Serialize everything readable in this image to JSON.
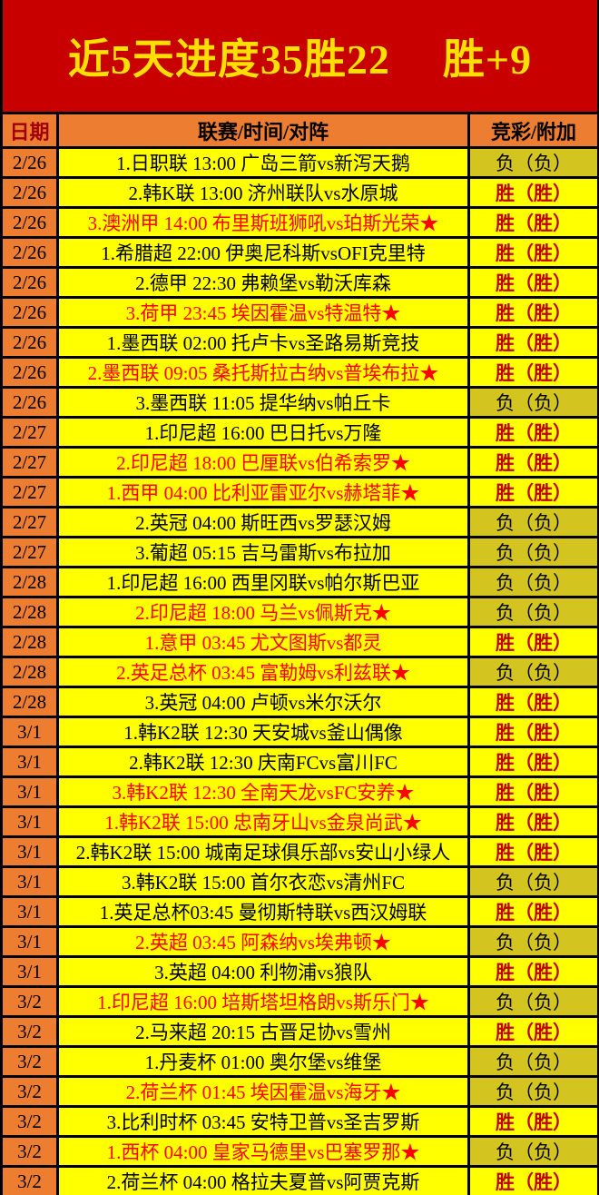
{
  "banner": {
    "title_progress": "近5天进度35胜22",
    "title_net": "胜+9"
  },
  "table": {
    "headers": {
      "date": "日期",
      "match": "联赛/时间/对阵",
      "result": "竞彩/附加"
    },
    "rows": [
      {
        "date": "2/26",
        "match": "1.日职联 13:00 广岛三箭vs新泻天鹅",
        "red": false,
        "result": "负（负）",
        "outcome": "loss"
      },
      {
        "date": "2/26",
        "match": "2.韩K联 13:00 济州联队vs水原城",
        "red": false,
        "result": "胜（胜）",
        "outcome": "win"
      },
      {
        "date": "2/26",
        "match": "3.澳洲甲 14:00 布里斯班狮吼vs珀斯光荣★",
        "red": true,
        "result": "胜（胜）",
        "outcome": "win"
      },
      {
        "date": "2/26",
        "match": "1.希腊超 22:00 伊奥尼科斯vsOFI克里特",
        "red": false,
        "result": "胜（胜）",
        "outcome": "win"
      },
      {
        "date": "2/26",
        "match": "2.德甲 22:30 弗赖堡vs勒沃库森",
        "red": false,
        "result": "胜（胜）",
        "outcome": "win"
      },
      {
        "date": "2/26",
        "match": "3.荷甲 23:45 埃因霍温vs特温特★",
        "red": true,
        "result": "胜（胜）",
        "outcome": "win"
      },
      {
        "date": "2/26",
        "match": "1.墨西联 02:00 托卢卡vs圣路易斯竞技",
        "red": false,
        "result": "胜（胜）",
        "outcome": "win"
      },
      {
        "date": "2/26",
        "match": "2.墨西联 09:05 桑托斯拉古纳vs普埃布拉★",
        "red": true,
        "result": "胜（胜）",
        "outcome": "win"
      },
      {
        "date": "2/26",
        "match": "3.墨西联 11:05 提华纳vs帕丘卡",
        "red": false,
        "result": "负（负）",
        "outcome": "loss"
      },
      {
        "date": "2/27",
        "match": "1.印尼超 16:00 巴日托vs万隆",
        "red": false,
        "result": "胜（胜）",
        "outcome": "win"
      },
      {
        "date": "2/27",
        "match": "2.印尼超 18:00 巴厘联vs伯希索罗★",
        "red": true,
        "result": "胜（胜）",
        "outcome": "win"
      },
      {
        "date": "2/27",
        "match": "1.西甲 04:00 比利亚雷亚尔vs赫塔菲★",
        "red": true,
        "result": "胜（胜）",
        "outcome": "win"
      },
      {
        "date": "2/27",
        "match": "2.英冠 04:00 斯旺西vs罗瑟汉姆",
        "red": false,
        "result": "负（负）",
        "outcome": "loss"
      },
      {
        "date": "2/27",
        "match": "3.葡超 05:15 吉马雷斯vs布拉加",
        "red": false,
        "result": "负（负）",
        "outcome": "loss"
      },
      {
        "date": "2/28",
        "match": "1.印尼超 16:00 西里冈联vs帕尔斯巴亚",
        "red": false,
        "result": "负（负）",
        "outcome": "loss"
      },
      {
        "date": "2/28",
        "match": "2.印尼超 18:00 马兰vs佩斯克★",
        "red": true,
        "result": "负（负）",
        "outcome": "loss"
      },
      {
        "date": "2/28",
        "match": "1.意甲 03:45 尤文图斯vs都灵",
        "red": true,
        "result": "胜（胜）",
        "outcome": "win"
      },
      {
        "date": "2/28",
        "match": "2.英足总杯 03:45 富勒姆vs利兹联★",
        "red": true,
        "result": "负（负）",
        "outcome": "loss"
      },
      {
        "date": "2/28",
        "match": "3.英冠 04:00 卢顿vs米尔沃尔",
        "red": false,
        "result": "胜（胜）",
        "outcome": "win"
      },
      {
        "date": "3/1",
        "match": "1.韩K2联 12:30 天安城vs釜山偶像",
        "red": false,
        "result": "胜（胜）",
        "outcome": "win"
      },
      {
        "date": "3/1",
        "match": "2.韩K2联 12:30 庆南FCvs富川FC",
        "red": false,
        "result": "胜（胜）",
        "outcome": "win"
      },
      {
        "date": "3/1",
        "match": "3.韩K2联 12:30 全南天龙vsFC安养★",
        "red": true,
        "result": "胜（胜）",
        "outcome": "win"
      },
      {
        "date": "3/1",
        "match": "1.韩K2联 15:00 忠南牙山vs金泉尚武★",
        "red": true,
        "result": "胜（胜）",
        "outcome": "win"
      },
      {
        "date": "3/1",
        "match": "2.韩K2联 15:00 城南足球俱乐部vs安山小绿人",
        "red": false,
        "result": "胜（胜）",
        "outcome": "win"
      },
      {
        "date": "3/1",
        "match": "3.韩K2联 15:00 首尔衣恋vs清州FC",
        "red": false,
        "result": "负（负）",
        "outcome": "loss"
      },
      {
        "date": "3/1",
        "match": "1.英足总杯03:45 曼彻斯特联vs西汉姆联",
        "red": false,
        "result": "胜（胜）",
        "outcome": "win"
      },
      {
        "date": "3/1",
        "match": "2.英超 03:45 阿森纳vs埃弗顿★",
        "red": true,
        "result": "负（负）",
        "outcome": "loss"
      },
      {
        "date": "3/1",
        "match": "3.英超 04:00 利物浦vs狼队",
        "red": false,
        "result": "胜（胜）",
        "outcome": "win"
      },
      {
        "date": "3/2",
        "match": "1.印尼超 16:00 培斯塔坦格朗vs斯乐门★",
        "red": true,
        "result": "负（负）",
        "outcome": "loss"
      },
      {
        "date": "3/2",
        "match": "2.马来超 20:15 古晋足协vs雪州",
        "red": false,
        "result": "胜（胜）",
        "outcome": "win"
      },
      {
        "date": "3/2",
        "match": "1.丹麦杯 01:00 奥尔堡vs维堡",
        "red": false,
        "result": "负（负）",
        "outcome": "loss"
      },
      {
        "date": "3/2",
        "match": "2.荷兰杯 01:45 埃因霍温vs海牙★",
        "red": true,
        "result": "负（负）",
        "outcome": "loss"
      },
      {
        "date": "3/2",
        "match": "3.比利时杯 03:45 安特卫普vs圣吉罗斯",
        "red": false,
        "result": "胜（胜）",
        "outcome": "win"
      },
      {
        "date": "3/2",
        "match": "1.西杯 04:00 皇家马德里vs巴塞罗那★",
        "red": true,
        "result": "负（负）",
        "outcome": "loss"
      },
      {
        "date": "3/2",
        "match": "2.荷兰杯 04:00 格拉夫夏普vs阿贾克斯",
        "red": false,
        "result": "胜（胜）",
        "outcome": "win"
      }
    ]
  },
  "colors": {
    "banner_red": "#C80000",
    "title_yellow": "#FFDE00",
    "header_orange": "#ED7D31",
    "row_yellow": "#FFFF00",
    "loss_olive": "#D4C420",
    "win_red": "#C00000",
    "match_red": "#FF0000"
  }
}
